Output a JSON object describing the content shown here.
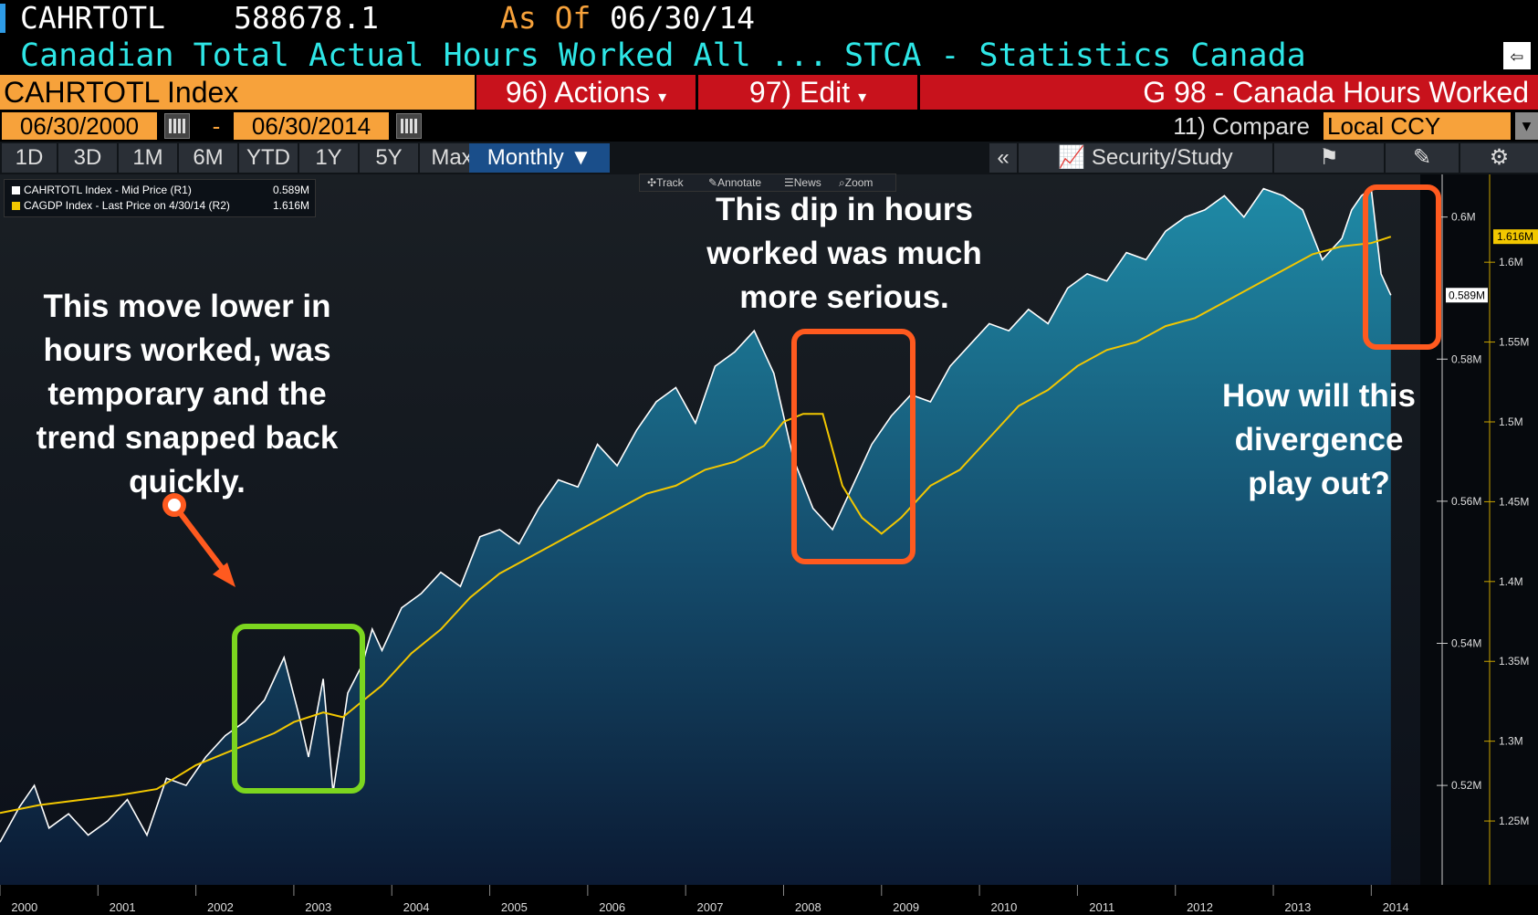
{
  "header": {
    "ticker": "CAHRTOTL",
    "last_value": "588678.1",
    "as_of_label": "As Of",
    "as_of_date": "06/30/14",
    "description": "Canadian Total Actual Hours Worked All ...",
    "source": "STCA - Statistics Canada"
  },
  "toolbar": {
    "security": "CAHRTOTL Index",
    "actions": "96) Actions",
    "edit": "97) Edit",
    "title": "G 98 - Canada Hours Worked",
    "start_date": "06/30/2000",
    "date_sep": "-",
    "end_date": "06/30/2014",
    "compare": "11) Compare",
    "currency": "Local CCY"
  },
  "ranges": [
    "1D",
    "3D",
    "1M",
    "6M",
    "YTD",
    "1Y",
    "5Y",
    "Max"
  ],
  "frequency": "Monthly",
  "tools": {
    "collapse": "«",
    "security_study": "Security/Study"
  },
  "mini_toolbar": [
    "Track",
    "Annotate",
    "News",
    "Zoom"
  ],
  "legend": [
    {
      "label": "CAHRTOTL Index - Mid Price (R1)",
      "value": "0.589M",
      "color": "#ffffff"
    },
    {
      "label": "CAGDP Index - Last Price on 4/30/14 (R2)",
      "value": "1.616M",
      "color": "#f2c700"
    }
  ],
  "annotations": {
    "left": "This move lower in hours worked, was temporary and the trend snapped back quickly.",
    "middle": "This dip in hours worked was much more serious.",
    "right": "How will this divergence play out?"
  },
  "chart_data": {
    "type": "line",
    "x_unit": "year",
    "xlim": [
      2000.0,
      2014.5
    ],
    "x_ticks": [
      "2000",
      "2001",
      "2002",
      "2003",
      "2004",
      "2005",
      "2006",
      "2007",
      "2008",
      "2009",
      "2010",
      "2011",
      "2012",
      "2013",
      "2014"
    ],
    "y1": {
      "label": "R1",
      "ticks": [
        "0.52M",
        "0.54M",
        "0.56M",
        "0.58M",
        "0.6M"
      ],
      "tick_values": [
        0.52,
        0.54,
        0.56,
        0.58,
        0.6
      ],
      "ylim": [
        0.506,
        0.606
      ],
      "last_label": "0.589M"
    },
    "y2": {
      "label": "R2",
      "ticks": [
        "1.25M",
        "1.3M",
        "1.35M",
        "1.4M",
        "1.45M",
        "1.5M",
        "1.55M",
        "1.6M"
      ],
      "tick_values": [
        1.25,
        1.3,
        1.35,
        1.4,
        1.45,
        1.5,
        1.55,
        1.6
      ],
      "ylim": [
        1.21,
        1.655
      ],
      "last_label": "1.616M"
    },
    "series": [
      {
        "name": "CAHRTOTL Index - Mid Price (R1)",
        "axis": "y1",
        "color": "#ffffff",
        "x": [
          2000.0,
          2000.2,
          2000.35,
          2000.5,
          2000.7,
          2000.9,
          2001.1,
          2001.3,
          2001.5,
          2001.7,
          2001.9,
          2002.1,
          2002.3,
          2002.5,
          2002.7,
          2002.9,
          2003.05,
          2003.15,
          2003.3,
          2003.4,
          2003.55,
          2003.7,
          2003.8,
          2003.9,
          2004.1,
          2004.3,
          2004.5,
          2004.7,
          2004.9,
          2005.1,
          2005.3,
          2005.5,
          2005.7,
          2005.9,
          2006.1,
          2006.3,
          2006.5,
          2006.7,
          2006.9,
          2007.1,
          2007.3,
          2007.5,
          2007.7,
          2007.9,
          2008.1,
          2008.3,
          2008.5,
          2008.7,
          2008.9,
          2009.1,
          2009.3,
          2009.5,
          2009.7,
          2009.9,
          2010.1,
          2010.3,
          2010.5,
          2010.7,
          2010.9,
          2011.1,
          2011.3,
          2011.5,
          2011.7,
          2011.9,
          2012.1,
          2012.3,
          2012.5,
          2012.7,
          2012.9,
          2013.1,
          2013.3,
          2013.5,
          2013.7,
          2013.8,
          2013.9,
          2014.0,
          2014.1,
          2014.2
        ],
        "y": [
          0.512,
          0.517,
          0.52,
          0.514,
          0.516,
          0.513,
          0.515,
          0.518,
          0.513,
          0.521,
          0.52,
          0.524,
          0.527,
          0.529,
          0.532,
          0.538,
          0.53,
          0.524,
          0.535,
          0.519,
          0.533,
          0.537,
          0.542,
          0.539,
          0.545,
          0.547,
          0.55,
          0.548,
          0.555,
          0.556,
          0.554,
          0.559,
          0.563,
          0.562,
          0.568,
          0.565,
          0.57,
          0.574,
          0.576,
          0.571,
          0.579,
          0.581,
          0.584,
          0.578,
          0.566,
          0.559,
          0.556,
          0.562,
          0.568,
          0.572,
          0.575,
          0.574,
          0.579,
          0.582,
          0.585,
          0.584,
          0.587,
          0.585,
          0.59,
          0.592,
          0.591,
          0.595,
          0.594,
          0.598,
          0.6,
          0.601,
          0.603,
          0.6,
          0.604,
          0.603,
          0.601,
          0.594,
          0.597,
          0.601,
          0.603,
          0.604,
          0.592,
          0.589
        ]
      },
      {
        "name": "CAGDP Index - Last Price on 4/30/14 (R2)",
        "axis": "y2",
        "color": "#f2c700",
        "x": [
          2000.0,
          2000.4,
          2000.8,
          2001.2,
          2001.6,
          2002.0,
          2002.4,
          2002.8,
          2003.0,
          2003.3,
          2003.5,
          2003.7,
          2003.9,
          2004.2,
          2004.5,
          2004.8,
          2005.1,
          2005.4,
          2005.7,
          2006.0,
          2006.3,
          2006.6,
          2006.9,
          2007.2,
          2007.5,
          2007.8,
          2008.0,
          2008.2,
          2008.4,
          2008.6,
          2008.8,
          2009.0,
          2009.2,
          2009.5,
          2009.8,
          2010.1,
          2010.4,
          2010.7,
          2011.0,
          2011.3,
          2011.6,
          2011.9,
          2012.2,
          2012.5,
          2012.8,
          2013.1,
          2013.4,
          2013.7,
          2014.0,
          2014.2
        ],
        "y": [
          1.255,
          1.26,
          1.263,
          1.266,
          1.27,
          1.285,
          1.295,
          1.305,
          1.312,
          1.318,
          1.315,
          1.325,
          1.335,
          1.355,
          1.37,
          1.39,
          1.405,
          1.415,
          1.425,
          1.435,
          1.445,
          1.455,
          1.46,
          1.47,
          1.475,
          1.485,
          1.5,
          1.505,
          1.505,
          1.46,
          1.44,
          1.43,
          1.44,
          1.46,
          1.47,
          1.49,
          1.51,
          1.52,
          1.535,
          1.545,
          1.55,
          1.56,
          1.565,
          1.575,
          1.585,
          1.595,
          1.605,
          1.61,
          1.612,
          1.616
        ]
      }
    ]
  }
}
